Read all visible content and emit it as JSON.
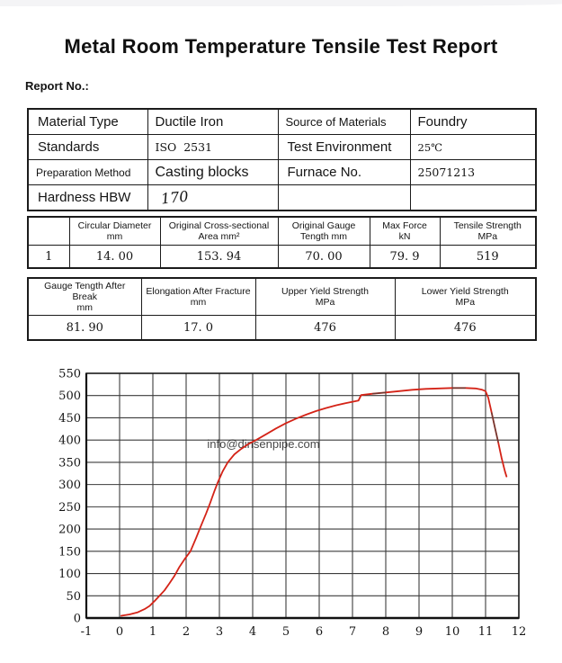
{
  "page": {
    "title": "Metal Room Temperature Tensile Test Report",
    "report_no_label": "Report No.:"
  },
  "info_table": {
    "rows": [
      [
        {
          "text": "Material Type",
          "kind": "label-lg"
        },
        {
          "text": "Ductile Iron",
          "kind": "sans"
        },
        {
          "text": "Source of Materials",
          "kind": "label-md"
        },
        {
          "text": "Foundry",
          "kind": "sans"
        }
      ],
      [
        {
          "text": "Standards",
          "kind": "label-lg"
        },
        {
          "text": "ISO  2531",
          "kind": "serif"
        },
        {
          "text": "Test Environment",
          "kind": "label-lg"
        },
        {
          "text": "25℃",
          "kind": "serif-sm"
        }
      ],
      [
        {
          "text": "Preparation Method",
          "kind": "label-sm"
        },
        {
          "text": "Casting blocks",
          "kind": "sans-lg"
        },
        {
          "text": "Furnace No.",
          "kind": "label-lg"
        },
        {
          "text": "25071213",
          "kind": "serif"
        }
      ],
      [
        {
          "text": "Hardness HBW",
          "kind": "label-lg"
        },
        {
          "text": "170",
          "kind": "hand"
        },
        {
          "text": "",
          "kind": "sans"
        },
        {
          "text": "",
          "kind": "sans"
        }
      ]
    ]
  },
  "results_table": {
    "headers": [
      {
        "l1": "",
        "l2": ""
      },
      {
        "l1": "Circular Diameter",
        "l2": "mm"
      },
      {
        "l1": "Original Cross-sectional",
        "l2": "Area mm²"
      },
      {
        "l1": "Original Gauge",
        "l2": "Tength mm"
      },
      {
        "l1": "Max Force",
        "l2": "kN"
      },
      {
        "l1": "Tensile Strength",
        "l2": "MPa"
      }
    ],
    "values": [
      "1",
      "14. 00",
      "153. 94",
      "70. 00",
      "79. 9",
      "519"
    ]
  },
  "yield_table": {
    "headers": [
      {
        "l1": "Gauge Tength After Break",
        "l2": "mm"
      },
      {
        "l1": "Elongation After Fracture",
        "l2": "mm"
      },
      {
        "l1": "Upper Yield Strength",
        "l2": "MPa"
      },
      {
        "l1": "Lower Yield Strength",
        "l2": "MPa"
      }
    ],
    "values": [
      "81. 90",
      "17. 0",
      "476",
      "476"
    ]
  },
  "chart_data": {
    "type": "line",
    "title": "",
    "xlabel": "",
    "ylabel": "",
    "xlim": [
      -1,
      12
    ],
    "ylim": [
      0,
      550
    ],
    "xticks": [
      -1,
      0,
      1,
      2,
      3,
      4,
      5,
      6,
      7,
      8,
      9,
      10,
      11,
      12
    ],
    "yticks": [
      0,
      50,
      100,
      150,
      200,
      250,
      300,
      350,
      400,
      450,
      500,
      550
    ],
    "grid": true,
    "legend": false,
    "series": [
      {
        "name": "stress-strain-curve",
        "color": "#d42317",
        "points": [
          [
            0.05,
            5
          ],
          [
            0.3,
            8
          ],
          [
            0.55,
            13
          ],
          [
            0.75,
            20
          ],
          [
            0.9,
            27
          ],
          [
            1.05,
            38
          ],
          [
            1.2,
            50
          ],
          [
            1.35,
            62
          ],
          [
            1.5,
            78
          ],
          [
            1.65,
            95
          ],
          [
            1.8,
            115
          ],
          [
            1.95,
            132
          ],
          [
            2.13,
            150
          ],
          [
            2.3,
            180
          ],
          [
            2.45,
            208
          ],
          [
            2.6,
            235
          ],
          [
            2.72,
            258
          ],
          [
            2.85,
            285
          ],
          [
            2.95,
            305
          ],
          [
            3.1,
            330
          ],
          [
            3.25,
            350
          ],
          [
            3.45,
            368
          ],
          [
            3.65,
            380
          ],
          [
            3.85,
            390
          ],
          [
            4.1,
            400
          ],
          [
            4.4,
            413
          ],
          [
            4.7,
            426
          ],
          [
            5.0,
            438
          ],
          [
            5.3,
            448
          ],
          [
            5.6,
            457
          ],
          [
            5.9,
            465
          ],
          [
            6.2,
            472
          ],
          [
            6.5,
            478
          ],
          [
            6.8,
            483
          ],
          [
            7.05,
            487
          ],
          [
            7.18,
            489
          ],
          [
            7.26,
            501
          ],
          [
            7.6,
            504
          ],
          [
            8.0,
            507
          ],
          [
            8.4,
            510
          ],
          [
            8.8,
            513
          ],
          [
            9.2,
            515
          ],
          [
            9.6,
            516
          ],
          [
            10.0,
            517
          ],
          [
            10.4,
            517
          ],
          [
            10.7,
            516
          ],
          [
            10.9,
            513
          ],
          [
            11.0,
            510
          ],
          [
            11.08,
            495
          ],
          [
            11.18,
            462
          ],
          [
            11.28,
            428
          ],
          [
            11.38,
            395
          ],
          [
            11.48,
            360
          ],
          [
            11.58,
            330
          ],
          [
            11.63,
            318
          ]
        ]
      }
    ],
    "dark_segment_color": "#52403a",
    "dark_segments": [
      [
        7.3,
        8.0
      ],
      [
        9.7,
        10.6
      ],
      [
        11.15,
        11.45
      ]
    ],
    "watermark": {
      "text": "info@dinsenpipe.com",
      "color": "#f3b273"
    }
  }
}
